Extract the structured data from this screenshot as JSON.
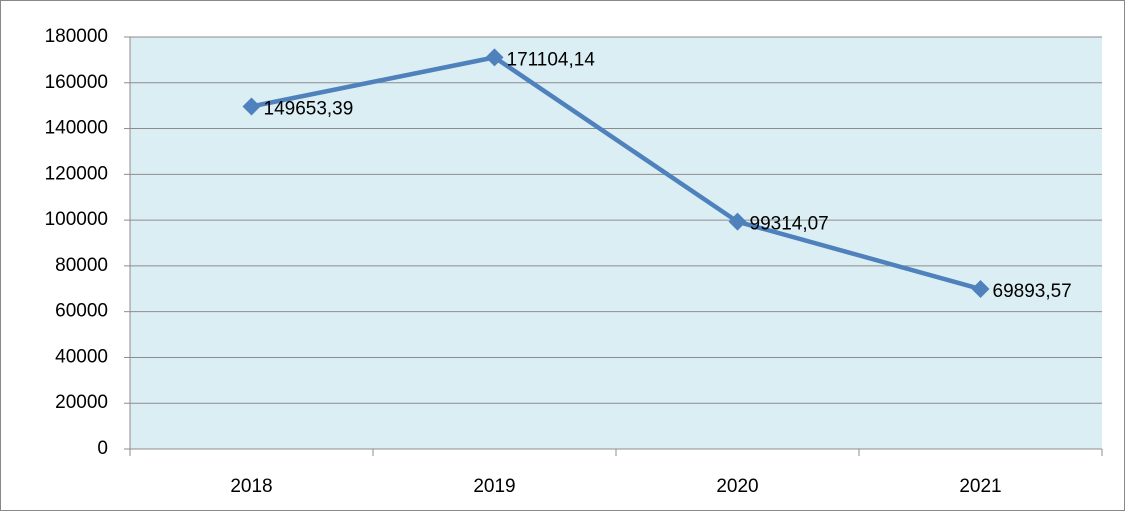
{
  "chart_data": {
    "type": "line",
    "categories": [
      "2018",
      "2019",
      "2020",
      "2021"
    ],
    "series": [
      {
        "color": "#4f81bd",
        "values": [
          149653.39,
          171104.14,
          99314.07,
          69893.57
        ],
        "value_labels": [
          "149653,39",
          "171104,14",
          "99314,07",
          "69893,57"
        ]
      }
    ],
    "ylim": [
      0,
      180000
    ],
    "yticks": [
      0,
      20000,
      40000,
      60000,
      80000,
      100000,
      120000,
      140000,
      160000,
      180000
    ],
    "grid": true,
    "plot_background": "#dbeef4"
  }
}
